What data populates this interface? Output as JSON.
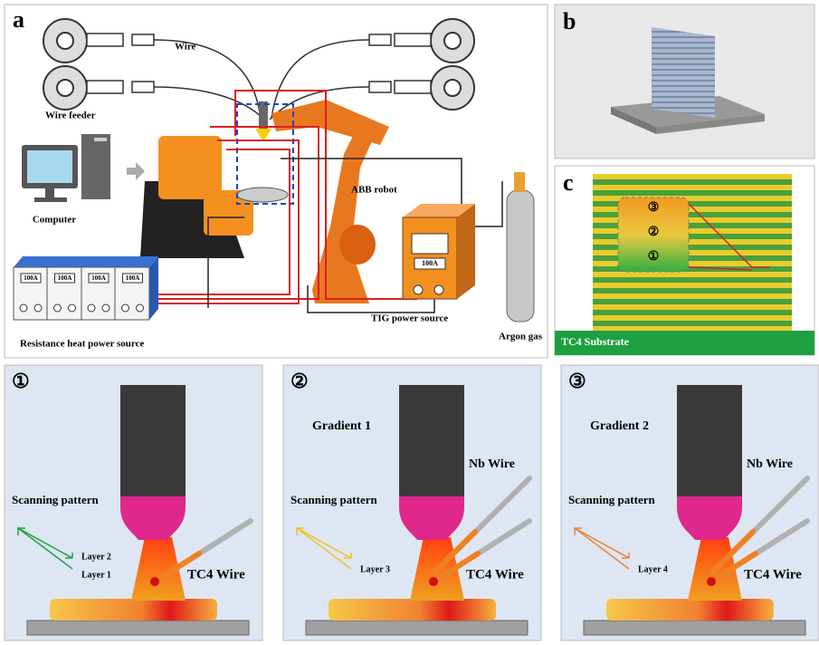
{
  "panel_a": {
    "label": "a",
    "wire": "Wire",
    "wire_feeder": "Wire feeder",
    "computer": "Computer",
    "robot": "ABB robot",
    "power_units": [
      "100A",
      "100A",
      "100A",
      "100A"
    ],
    "tig_display": "100A",
    "tig": "TIG power source",
    "argon": "Argon gas",
    "resistance": "Resistance heat power source"
  },
  "panel_b": {
    "label": "b"
  },
  "panel_c": {
    "label": "c",
    "zones": [
      "③",
      "②",
      "①"
    ],
    "substrate": "TC4 Substrate"
  },
  "process_panels": [
    {
      "marker": "①",
      "scanning": "Scanning pattern",
      "layers": [
        "Layer 2",
        "Layer 1"
      ],
      "tc4": "TC4 Wire"
    },
    {
      "marker": "②",
      "gradient": "Gradient 1",
      "nb": "Nb Wire",
      "scanning": "Scanning pattern",
      "layers": [
        "Layer 3"
      ],
      "tc4": "TC4 Wire"
    },
    {
      "marker": "③",
      "gradient": "Gradient 2",
      "nb": "Nb Wire",
      "scanning": "Scanning pattern",
      "layers": [
        "Layer 4"
      ],
      "tc4": "TC4 Wire"
    }
  ]
}
